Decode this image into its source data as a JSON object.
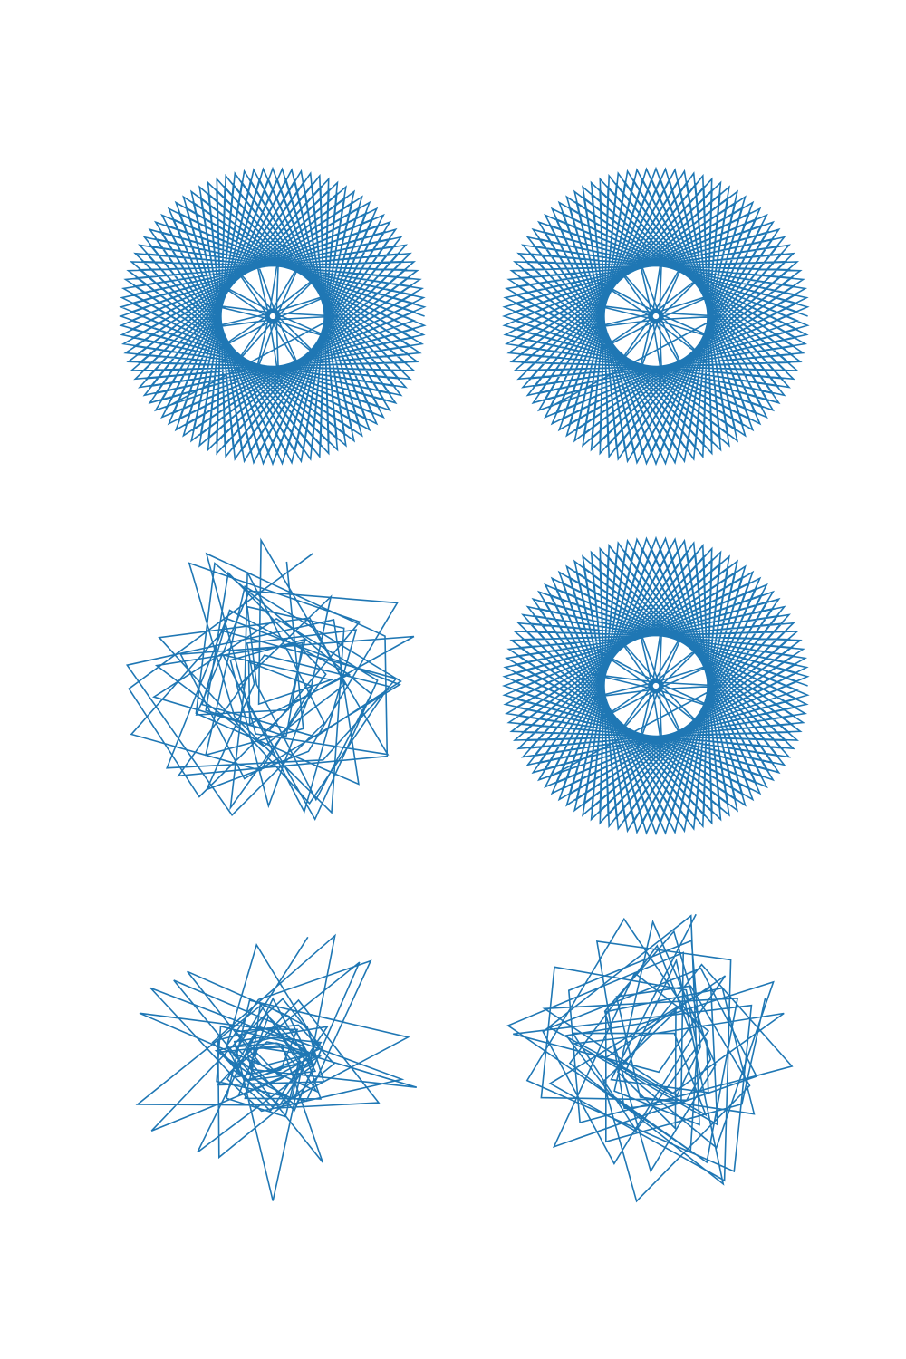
{
  "figure": {
    "background": "#ffffff",
    "line_color": "#1f77b4"
  },
  "chart_data": [
    {
      "type": "line",
      "panel": "top-left",
      "title": "",
      "xlabel": "",
      "ylabel": "",
      "axes_visible": false,
      "grid": false,
      "legend": "none",
      "pattern": "polar-star",
      "points_total": 200,
      "vertex_step_deg": 138.6,
      "rotation_deg": 0,
      "radius_outer": 1.0,
      "radius_inner": 0.42,
      "xlim": [
        -1.05,
        1.05
      ],
      "ylim": [
        -1.05,
        1.05
      ]
    },
    {
      "type": "line",
      "panel": "top-right",
      "title": "",
      "xlabel": "",
      "ylabel": "",
      "axes_visible": false,
      "grid": false,
      "legend": "none",
      "pattern": "polar-star",
      "points_total": 200,
      "vertex_step_deg": 138.6,
      "rotation_deg": 0,
      "radius_outer": 1.0,
      "radius_inner": 0.42,
      "xlim": [
        -1.05,
        1.05
      ],
      "ylim": [
        -1.05,
        1.05
      ]
    },
    {
      "type": "line",
      "panel": "middle-left",
      "title": "",
      "xlabel": "",
      "ylabel": "",
      "axes_visible": false,
      "grid": false,
      "legend": "none",
      "pattern": "random-walk",
      "points_total": 90,
      "seed": 7,
      "radius_outer": 1.0,
      "xlim": [
        -1.05,
        1.05
      ],
      "ylim": [
        -1.05,
        1.05
      ]
    },
    {
      "type": "line",
      "panel": "middle-right",
      "title": "",
      "xlabel": "",
      "ylabel": "",
      "axes_visible": false,
      "grid": false,
      "legend": "none",
      "pattern": "polar-star",
      "points_total": 200,
      "vertex_step_deg": 138.6,
      "rotation_deg": 0,
      "radius_outer": 1.0,
      "radius_inner": 0.42,
      "xlim": [
        -1.05,
        1.05
      ],
      "ylim": [
        -1.05,
        1.05
      ]
    },
    {
      "type": "line",
      "panel": "bottom-left",
      "title": "",
      "xlabel": "",
      "ylabel": "",
      "axes_visible": false,
      "grid": false,
      "legend": "none",
      "pattern": "random-walk-dense-core",
      "points_total": 110,
      "seed": 23,
      "radius_outer": 1.0,
      "xlim": [
        -1.05,
        1.05
      ],
      "ylim": [
        -1.05,
        1.05
      ]
    },
    {
      "type": "line",
      "panel": "bottom-right",
      "title": "",
      "xlabel": "",
      "ylabel": "",
      "axes_visible": false,
      "grid": false,
      "legend": "none",
      "pattern": "random-walk",
      "points_total": 90,
      "seed": 41,
      "radius_outer": 1.0,
      "xlim": [
        -1.05,
        1.05
      ],
      "ylim": [
        -1.05,
        1.05
      ]
    }
  ]
}
